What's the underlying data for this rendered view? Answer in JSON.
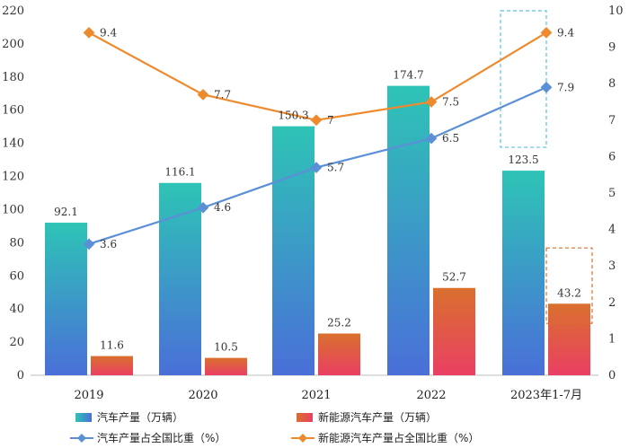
{
  "chart_data": {
    "type": "bar",
    "categories": [
      "2019",
      "2020",
      "2021",
      "2022",
      "2023年1-7月"
    ],
    "series": [
      {
        "name": "汽车产量（万辆）",
        "type": "bar",
        "axis": "left",
        "values": [
          92.1,
          116.1,
          150.3,
          174.7,
          123.5
        ],
        "labels": [
          "92.1",
          "116.1",
          "150.3",
          "174.7",
          "123.5"
        ]
      },
      {
        "name": "新能源汽车产量（万辆）",
        "type": "bar",
        "axis": "left",
        "values": [
          11.6,
          10.5,
          25.2,
          52.7,
          43.2
        ],
        "labels": [
          "11.6",
          "10.5",
          "25.2",
          "52.7",
          "43.2"
        ]
      },
      {
        "name": "汽车产量占全国比重（%）",
        "type": "line",
        "axis": "right",
        "values": [
          3.6,
          4.6,
          5.7,
          6.5,
          7.9
        ],
        "labels": [
          "3.6",
          "4.6",
          "5.7",
          "6.5",
          "7.9"
        ]
      },
      {
        "name": "新能源汽车产量占全国比重（%）",
        "type": "line",
        "axis": "right",
        "values": [
          9.4,
          7.7,
          7.0,
          7.5,
          9.4
        ],
        "labels": [
          "9.4",
          "7.7",
          "7",
          "7.5",
          "9.4"
        ]
      }
    ],
    "y_left": {
      "min": 0,
      "max": 220,
      "ticks": [
        "0",
        "20",
        "40",
        "60",
        "80",
        "100",
        "120",
        "140",
        "160",
        "180",
        "200",
        "220"
      ]
    },
    "y_right": {
      "min": 0,
      "max": 10,
      "ticks": [
        "0",
        "1",
        "2",
        "3",
        "4",
        "5",
        "6",
        "7",
        "8",
        "9",
        "10"
      ]
    },
    "highlight_category": "2023年1-7月",
    "legend_position": "bottom",
    "grid": false,
    "colors": {
      "bar1_top": "#2ec4b6",
      "bar1_bottom": "#4a6fd8",
      "bar2_top": "#d9702e",
      "bar2_bottom": "#ea3f63",
      "line1": "#5b8fd6",
      "line2": "#ee8a2e",
      "highlight1": "#5bc0de",
      "highlight2": "#d9702e"
    }
  }
}
